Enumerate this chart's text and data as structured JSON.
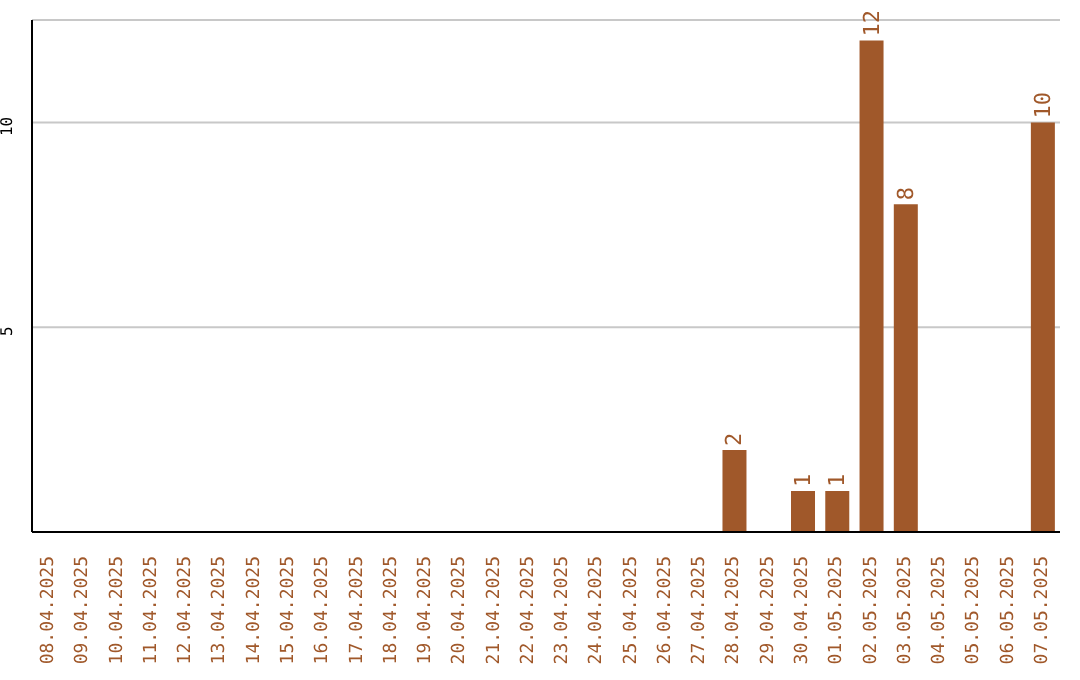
{
  "chart_data": {
    "type": "bar",
    "categories": [
      "08.04.2025",
      "09.04.2025",
      "10.04.2025",
      "11.04.2025",
      "12.04.2025",
      "13.04.2025",
      "14.04.2025",
      "15.04.2025",
      "16.04.2025",
      "17.04.2025",
      "18.04.2025",
      "19.04.2025",
      "20.04.2025",
      "21.04.2025",
      "22.04.2025",
      "23.04.2025",
      "24.04.2025",
      "25.04.2025",
      "26.04.2025",
      "27.04.2025",
      "28.04.2025",
      "29.04.2025",
      "30.04.2025",
      "01.05.2025",
      "02.05.2025",
      "03.05.2025",
      "04.05.2025",
      "05.05.2025",
      "06.05.2025",
      "07.05.2025"
    ],
    "values": [
      null,
      null,
      null,
      null,
      null,
      null,
      null,
      null,
      null,
      null,
      null,
      null,
      null,
      null,
      null,
      null,
      null,
      null,
      null,
      null,
      2,
      null,
      1,
      1,
      12,
      8,
      null,
      null,
      null,
      10
    ],
    "value_labels": [
      null,
      null,
      null,
      null,
      null,
      null,
      null,
      null,
      null,
      null,
      null,
      null,
      null,
      null,
      null,
      null,
      null,
      null,
      null,
      null,
      "2",
      null,
      "1",
      "1",
      "12",
      "8",
      null,
      null,
      null,
      "10"
    ],
    "color": "#a0582a",
    "ylim": [
      0,
      12.5
    ],
    "yticks": [
      5,
      10
    ],
    "grid": "y"
  }
}
